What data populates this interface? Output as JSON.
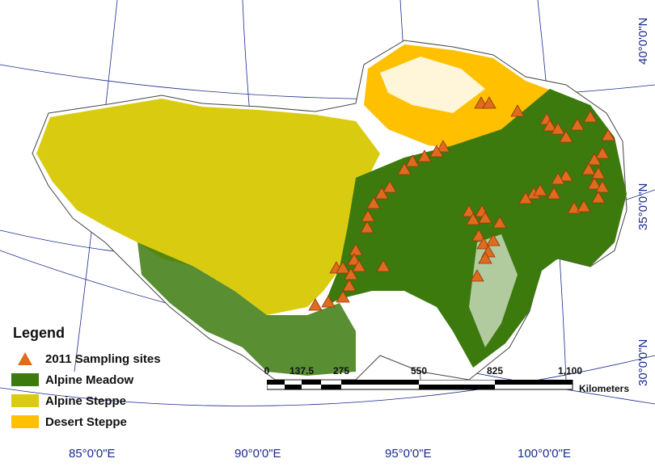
{
  "graticule": {
    "longitudes": [
      "85°0'0\"E",
      "90°0'0\"E",
      "95°0'0\"E",
      "100°0'0\"E"
    ],
    "latitudes": [
      "40°0'0\"N",
      "35°0'0\"N",
      "30°0'0\"N"
    ]
  },
  "legend": {
    "title": "Legend",
    "items": [
      {
        "label": "2011 Sampling sites",
        "kind": "triangle",
        "color": "#e06a1e"
      },
      {
        "label": "Alpine Meadow",
        "kind": "swatch",
        "color": "#3d7a0e"
      },
      {
        "label": "Alpine Steppe",
        "kind": "swatch",
        "color": "#d9cc10"
      },
      {
        "label": "Desert Steppe",
        "kind": "swatch",
        "color": "#ffc000"
      }
    ]
  },
  "scalebar": {
    "ticks": [
      "0",
      "137.5",
      "275",
      "550",
      "825",
      "1,100"
    ],
    "unit": "Kilometers"
  },
  "colors": {
    "alpine_meadow": "#3d7a0e",
    "alpine_steppe": "#d9cc10",
    "desert_steppe": "#ffc000",
    "sampling_site": "#e06a1e",
    "graticule": "#1a2a8c"
  }
}
